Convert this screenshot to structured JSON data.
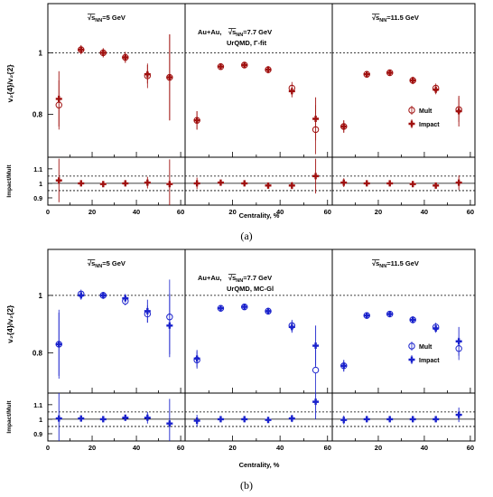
{
  "figure": {
    "label_a": "(a)",
    "label_b": "(b)"
  },
  "chart_data": [
    {
      "id": "a",
      "type": "scatter",
      "model_text": "UrQMD, Γ-fit",
      "system_text": "Au+Au,",
      "ylabel_top": "v₂{4}/v₂{2}",
      "ylabel_bottom": "Impact/Mult",
      "xlabel": "Centrality, %",
      "color": "#a0100f",
      "ylim_top": [
        0.66,
        1.16
      ],
      "yticks_top": [
        "0.8",
        "1"
      ],
      "ylim_bottom": [
        0.85,
        1.18
      ],
      "yticks_bottom": [
        "0.9",
        "1",
        "1.1"
      ],
      "xlim": [
        0,
        62
      ],
      "xticks": [
        "0",
        "20",
        "40",
        "60"
      ],
      "legend": [
        "Mult",
        "Impact"
      ],
      "x": [
        5,
        15,
        25,
        35,
        45,
        55
      ],
      "panels": [
        {
          "energy_text": "=5 GeV",
          "mult": [
            0.83,
            1.01,
            1.0,
            0.985,
            0.925,
            0.92
          ],
          "mult_err": [
            0.08,
            0.012,
            0.012,
            0.015,
            0.04,
            0.14
          ],
          "impact": [
            0.85,
            1.01,
            1.0,
            0.985,
            0.93,
            0.92
          ],
          "impact_err": [
            0.09,
            0.015,
            0.015,
            0.018,
            0.03,
            0.14
          ],
          "ratio": [
            1.02,
            1.0,
            0.995,
            1.0,
            1.005,
            0.995
          ],
          "ratio_err": [
            0.15,
            0.015,
            0.015,
            0.015,
            0.04,
            0.17
          ]
        },
        {
          "energy_text": "=7.7 GeV",
          "mult": [
            0.78,
            0.955,
            0.96,
            0.945,
            0.885,
            0.75
          ],
          "mult_err": [
            0.03,
            0.01,
            0.01,
            0.012,
            0.02,
            0.08
          ],
          "impact": [
            0.78,
            0.955,
            0.96,
            0.945,
            0.875,
            0.785
          ],
          "impact_err": [
            0.03,
            0.01,
            0.01,
            0.012,
            0.02,
            0.07
          ],
          "ratio": [
            1.0,
            1.005,
            1.0,
            0.985,
            0.985,
            1.05
          ],
          "ratio_err": [
            0.04,
            0.015,
            0.015,
            0.015,
            0.025,
            0.12
          ]
        },
        {
          "energy_text": "=11.5 GeV",
          "mult": [
            0.76,
            0.93,
            0.935,
            0.91,
            0.885,
            0.815
          ],
          "mult_err": [
            0.02,
            0.01,
            0.01,
            0.012,
            0.015,
            0.04
          ],
          "impact": [
            0.76,
            0.93,
            0.935,
            0.91,
            0.88,
            0.81
          ],
          "impact_err": [
            0.02,
            0.01,
            0.01,
            0.012,
            0.015,
            0.05
          ],
          "ratio": [
            1.005,
            1.0,
            1.0,
            0.995,
            0.985,
            1.005
          ],
          "ratio_err": [
            0.03,
            0.015,
            0.015,
            0.015,
            0.02,
            0.05
          ]
        }
      ]
    },
    {
      "id": "b",
      "type": "scatter",
      "model_text": "UrQMD, MC-Gl",
      "system_text": "Au+Au,",
      "ylabel_top": "v₂{4}/v₂{2}",
      "ylabel_bottom": "Impact/Mult",
      "xlabel": "Centrality, %",
      "color": "#1a22cc",
      "ylim_top": [
        0.66,
        1.16
      ],
      "yticks_top": [
        "0.8",
        "1"
      ],
      "ylim_bottom": [
        0.85,
        1.18
      ],
      "yticks_bottom": [
        "0.9",
        "1",
        "1.1"
      ],
      "xlim": [
        0,
        62
      ],
      "xticks": [
        "0",
        "20",
        "40",
        "60"
      ],
      "legend": [
        "Mult",
        "Impact"
      ],
      "x": [
        5,
        15,
        25,
        35,
        45,
        55
      ],
      "panels": [
        {
          "energy_text": "=5 GeV",
          "mult": [
            0.83,
            1.005,
            1.0,
            0.98,
            0.935,
            0.925
          ],
          "mult_err": [
            0.12,
            0.015,
            0.012,
            0.015,
            0.03,
            0.13
          ],
          "impact": [
            0.83,
            1.0,
            1.0,
            0.99,
            0.945,
            0.895
          ],
          "impact_err": [
            0.11,
            0.015,
            0.012,
            0.015,
            0.04,
            0.11
          ],
          "ratio": [
            1.005,
            1.005,
            1.0,
            1.01,
            1.01,
            0.97
          ],
          "ratio_err": [
            0.2,
            0.015,
            0.015,
            0.02,
            0.04,
            0.17
          ]
        },
        {
          "energy_text": "=7.7 GeV",
          "mult": [
            0.775,
            0.955,
            0.96,
            0.945,
            0.895,
            0.74
          ],
          "mult_err": [
            0.03,
            0.01,
            0.01,
            0.012,
            0.02,
            0.08
          ],
          "impact": [
            0.78,
            0.955,
            0.96,
            0.945,
            0.89,
            0.825
          ],
          "impact_err": [
            0.03,
            0.01,
            0.01,
            0.012,
            0.02,
            0.07
          ],
          "ratio": [
            0.99,
            1.0,
            1.0,
            0.995,
            1.005,
            1.12
          ],
          "ratio_err": [
            0.04,
            0.015,
            0.015,
            0.015,
            0.025,
            0.12
          ]
        },
        {
          "energy_text": "=11.5 GeV",
          "mult": [
            0.755,
            0.93,
            0.935,
            0.915,
            0.89,
            0.815
          ],
          "mult_err": [
            0.02,
            0.01,
            0.01,
            0.012,
            0.015,
            0.04
          ],
          "impact": [
            0.755,
            0.93,
            0.935,
            0.915,
            0.885,
            0.84
          ],
          "impact_err": [
            0.02,
            0.01,
            0.01,
            0.012,
            0.015,
            0.05
          ],
          "ratio": [
            0.995,
            1.0,
            1.0,
            1.0,
            1.0,
            1.03
          ],
          "ratio_err": [
            0.03,
            0.015,
            0.015,
            0.015,
            0.02,
            0.05
          ]
        }
      ]
    }
  ]
}
